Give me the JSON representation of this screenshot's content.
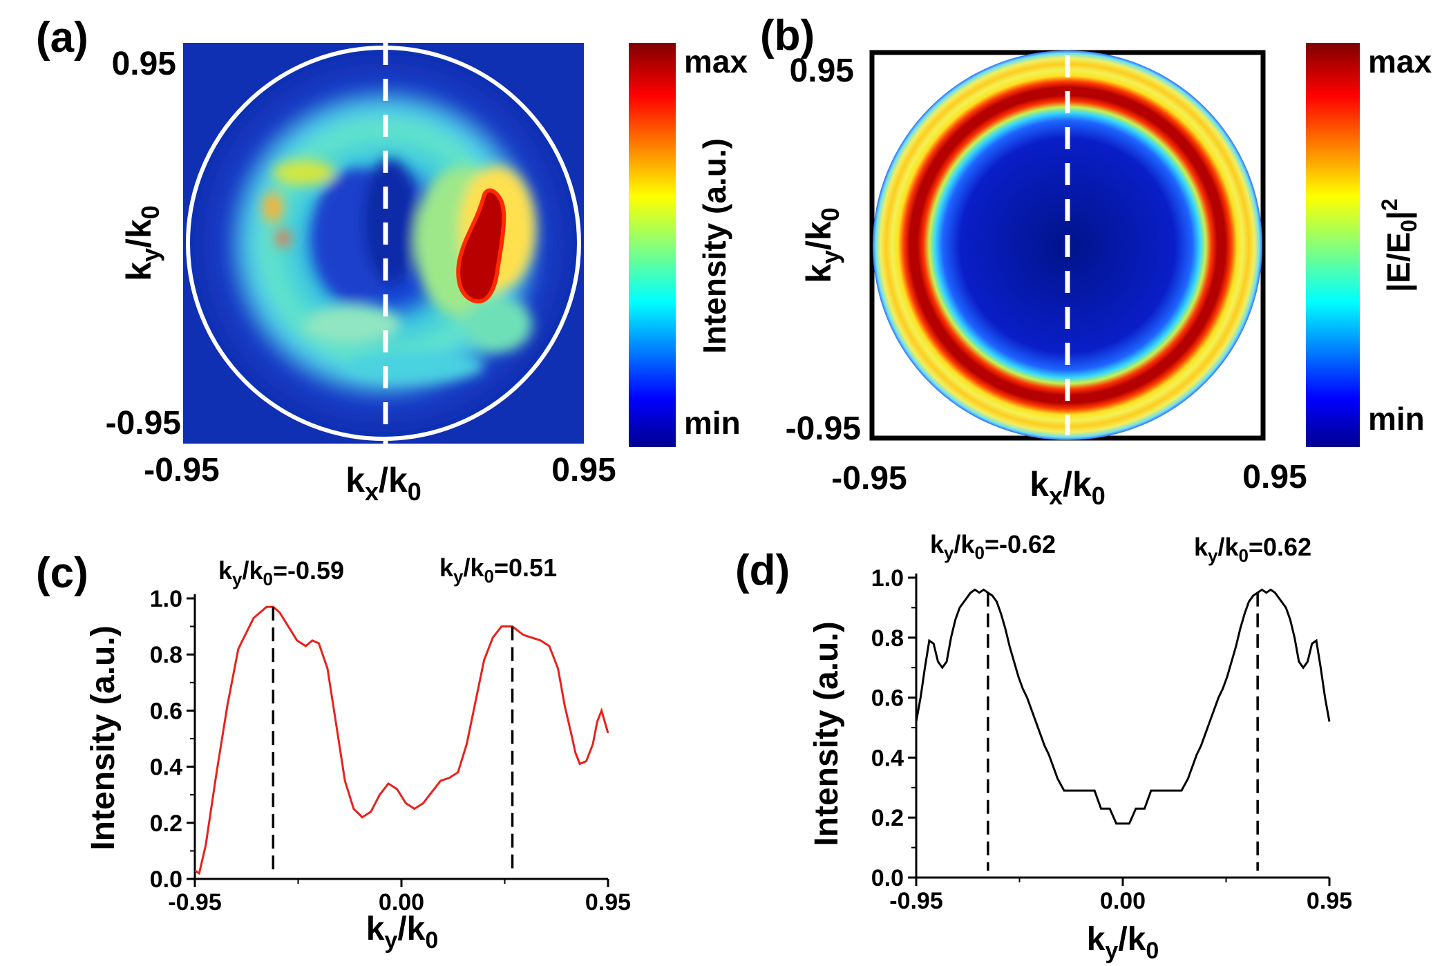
{
  "chart_data": [
    {
      "panel": "(a)",
      "type": "heatmap",
      "xlabel": "k_x/k_0",
      "ylabel": "k_y/k_0",
      "x_tick_labels": [
        "-0.95",
        "0.95"
      ],
      "y_tick_labels": [
        "0.95",
        "-0.95"
      ],
      "xlim": [
        -0.95,
        0.95
      ],
      "ylim": [
        -0.95,
        0.95
      ],
      "colorbar": {
        "label": "Intensity (a.u.)",
        "max_label": "max",
        "min_label": "min"
      }
    },
    {
      "panel": "(b)",
      "type": "heatmap",
      "xlabel": "k_x/k_0",
      "ylabel": "k_y/k_0",
      "x_tick_labels": [
        "-0.95",
        "0.95"
      ],
      "y_tick_labels": [
        "0.95",
        "-0.95"
      ],
      "xlim": [
        -0.95,
        0.95
      ],
      "ylim": [
        -0.95,
        0.95
      ],
      "colorbar": {
        "label": "|E/E_0|^2",
        "max_label": "max",
        "min_label": "min"
      }
    },
    {
      "panel": "(c)",
      "type": "line",
      "xlabel": "k_y/k_0",
      "ylabel": "Intensity (a.u.)",
      "xlim": [
        -0.95,
        0.95
      ],
      "ylim": [
        0,
        1.0
      ],
      "x_ticks": [
        "-0.95",
        "0.00",
        "0.95"
      ],
      "y_ticks": [
        "0.0",
        "0.2",
        "0.4",
        "0.6",
        "0.8",
        "1.0"
      ],
      "color": "#e8211b",
      "annotations": [
        {
          "text": "k_y/k_0=-0.59",
          "x": -0.59
        },
        {
          "text": "k_y/k_0=0.51",
          "x": 0.51
        }
      ],
      "x": [
        -0.95,
        -0.93,
        -0.9,
        -0.85,
        -0.8,
        -0.75,
        -0.68,
        -0.62,
        -0.59,
        -0.56,
        -0.52,
        -0.48,
        -0.44,
        -0.41,
        -0.38,
        -0.34,
        -0.3,
        -0.26,
        -0.22,
        -0.18,
        -0.14,
        -0.1,
        -0.06,
        -0.02,
        0.02,
        0.06,
        0.1,
        0.14,
        0.18,
        0.22,
        0.26,
        0.3,
        0.34,
        0.38,
        0.42,
        0.46,
        0.51,
        0.56,
        0.6,
        0.64,
        0.68,
        0.72,
        0.75,
        0.78,
        0.8,
        0.82,
        0.85,
        0.88,
        0.9,
        0.92,
        0.95
      ],
      "y": [
        0.03,
        0.02,
        0.12,
        0.38,
        0.62,
        0.82,
        0.93,
        0.97,
        0.97,
        0.95,
        0.9,
        0.85,
        0.83,
        0.85,
        0.84,
        0.75,
        0.55,
        0.35,
        0.25,
        0.22,
        0.24,
        0.3,
        0.34,
        0.32,
        0.27,
        0.25,
        0.27,
        0.31,
        0.35,
        0.36,
        0.38,
        0.48,
        0.63,
        0.78,
        0.86,
        0.9,
        0.9,
        0.87,
        0.86,
        0.85,
        0.83,
        0.75,
        0.62,
        0.52,
        0.45,
        0.41,
        0.42,
        0.48,
        0.56,
        0.6,
        0.52
      ]
    },
    {
      "panel": "(d)",
      "type": "line",
      "xlabel": "k_y/k_0",
      "ylabel": "Intensity (a.u.)",
      "xlim": [
        -0.95,
        0.95
      ],
      "ylim": [
        0,
        1.0
      ],
      "x_ticks": [
        "-0.95",
        "0.00",
        "0.95"
      ],
      "y_ticks": [
        "0.0",
        "0.2",
        "0.4",
        "0.6",
        "0.8",
        "1.0"
      ],
      "color": "#000000",
      "annotations": [
        {
          "text": "k_y/k_0=-0.62",
          "x": -0.62
        },
        {
          "text": "k_y/k_0=0.62",
          "x": 0.62
        }
      ],
      "x": [
        -0.95,
        -0.93,
        -0.91,
        -0.89,
        -0.87,
        -0.85,
        -0.83,
        -0.81,
        -0.79,
        -0.77,
        -0.75,
        -0.72,
        -0.7,
        -0.68,
        -0.66,
        -0.64,
        -0.62,
        -0.6,
        -0.58,
        -0.56,
        -0.54,
        -0.52,
        -0.5,
        -0.48,
        -0.46,
        -0.44,
        -0.42,
        -0.4,
        -0.38,
        -0.36,
        -0.34,
        -0.32,
        -0.3,
        -0.27,
        -0.2,
        -0.13,
        -0.1,
        -0.06,
        -0.03,
        0.03,
        0.06,
        0.1,
        0.13,
        0.2,
        0.27,
        0.3,
        0.32,
        0.34,
        0.36,
        0.38,
        0.4,
        0.42,
        0.44,
        0.46,
        0.48,
        0.5,
        0.52,
        0.54,
        0.56,
        0.58,
        0.6,
        0.62,
        0.64,
        0.66,
        0.68,
        0.7,
        0.72,
        0.75,
        0.77,
        0.79,
        0.81,
        0.83,
        0.85,
        0.87,
        0.89,
        0.91,
        0.93,
        0.95
      ],
      "y": [
        0.52,
        0.6,
        0.7,
        0.79,
        0.78,
        0.72,
        0.7,
        0.72,
        0.8,
        0.86,
        0.9,
        0.93,
        0.95,
        0.96,
        0.95,
        0.96,
        0.95,
        0.94,
        0.92,
        0.88,
        0.83,
        0.77,
        0.72,
        0.67,
        0.63,
        0.6,
        0.56,
        0.52,
        0.48,
        0.44,
        0.41,
        0.37,
        0.33,
        0.29,
        0.29,
        0.29,
        0.23,
        0.23,
        0.18,
        0.18,
        0.23,
        0.23,
        0.29,
        0.29,
        0.29,
        0.33,
        0.37,
        0.41,
        0.44,
        0.48,
        0.52,
        0.56,
        0.6,
        0.63,
        0.67,
        0.72,
        0.77,
        0.83,
        0.88,
        0.92,
        0.94,
        0.95,
        0.96,
        0.95,
        0.96,
        0.95,
        0.93,
        0.9,
        0.86,
        0.8,
        0.72,
        0.7,
        0.72,
        0.78,
        0.79,
        0.7,
        0.6,
        0.52
      ]
    }
  ]
}
